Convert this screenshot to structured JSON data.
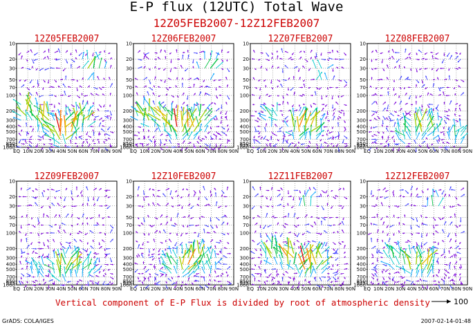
{
  "title": "E-P flux (12UTC) Total Wave",
  "subtitle": "12Z05FEB2007-12Z12FEB2007",
  "note": "Vertical component of E-P Flux is divided by root of atmospheric density",
  "reference_vector_label": "100",
  "footer_left": "GrADS: COLA/IGES",
  "footer_right": "2007-02-14-01:48",
  "colors": {
    "label_red": "#cc0000",
    "arrow_scale": [
      "#7a00d9",
      "#3a3aff",
      "#00a0ff",
      "#00c8c8",
      "#00c040",
      "#9bd000",
      "#e0c000",
      "#ff8000",
      "#e00000"
    ]
  },
  "chart_data": {
    "type": "vector field (Eliassen-Palm flux cross-sections)",
    "x_ticks": [
      "EQ",
      "10N",
      "20N",
      "30N",
      "40N",
      "50N",
      "60N",
      "70N",
      "80N",
      "90N"
    ],
    "y_ticks": [
      "10",
      "20",
      "30",
      "50",
      "70",
      "100",
      "200",
      "300",
      "400",
      "500",
      "700",
      "850",
      "925",
      "1000"
    ],
    "y_scale": "log-pressure (hPa), 10 at top, 1000 at bottom",
    "grid": "dotted",
    "panels": [
      {
        "label": "12Z05FEB2007",
        "activity": [
          {
            "lat": 10,
            "p": 200,
            "intensity": 0.75,
            "up": true
          },
          {
            "lat": 25,
            "p": 300,
            "intensity": 0.8,
            "up": true
          },
          {
            "lat": 40,
            "p": 500,
            "intensity": 1.0,
            "up": true
          },
          {
            "lat": 48,
            "p": 400,
            "intensity": 0.85,
            "up": true
          },
          {
            "lat": 58,
            "p": 300,
            "intensity": 0.7,
            "up": true
          },
          {
            "lat": 65,
            "p": 30,
            "intensity": 0.6,
            "up": true
          },
          {
            "lat": 70,
            "p": 30,
            "intensity": 0.55,
            "up": true
          }
        ]
      },
      {
        "label": "12Z06FEB2007",
        "activity": [
          {
            "lat": 12,
            "p": 250,
            "intensity": 0.7,
            "up": true
          },
          {
            "lat": 28,
            "p": 300,
            "intensity": 0.8,
            "up": true
          },
          {
            "lat": 40,
            "p": 400,
            "intensity": 0.95,
            "up": true
          },
          {
            "lat": 50,
            "p": 400,
            "intensity": 0.9,
            "up": true
          },
          {
            "lat": 60,
            "p": 300,
            "intensity": 0.6,
            "up": true
          },
          {
            "lat": 68,
            "p": 30,
            "intensity": 0.55,
            "up": true
          }
        ]
      },
      {
        "label": "12Z07FEB2007",
        "activity": [
          {
            "lat": 20,
            "p": 250,
            "intensity": 0.45,
            "up": true
          },
          {
            "lat": 45,
            "p": 400,
            "intensity": 0.9,
            "up": true
          },
          {
            "lat": 55,
            "p": 400,
            "intensity": 0.8,
            "up": true
          },
          {
            "lat": 62,
            "p": 40,
            "intensity": 0.5,
            "up": true
          }
        ]
      },
      {
        "label": "12Z08FEB2007",
        "activity": [
          {
            "lat": 35,
            "p": 500,
            "intensity": 0.55,
            "up": true
          },
          {
            "lat": 48,
            "p": 400,
            "intensity": 0.75,
            "up": true
          },
          {
            "lat": 57,
            "p": 400,
            "intensity": 0.6,
            "up": true
          },
          {
            "lat": 80,
            "p": 600,
            "intensity": 0.45,
            "up": true
          }
        ]
      },
      {
        "label": "12Z09FEB2007",
        "activity": [
          {
            "lat": 20,
            "p": 500,
            "intensity": 0.4,
            "up": true
          },
          {
            "lat": 40,
            "p": 500,
            "intensity": 0.75,
            "up": true
          },
          {
            "lat": 50,
            "p": 400,
            "intensity": 0.7,
            "up": true
          },
          {
            "lat": 62,
            "p": 500,
            "intensity": 0.5,
            "up": true
          }
        ]
      },
      {
        "label": "12Z10FEB2007",
        "activity": [
          {
            "lat": 35,
            "p": 400,
            "intensity": 0.55,
            "up": true
          },
          {
            "lat": 48,
            "p": 400,
            "intensity": 0.85,
            "up": true
          },
          {
            "lat": 58,
            "p": 300,
            "intensity": 0.7,
            "up": true
          },
          {
            "lat": 68,
            "p": 400,
            "intensity": 0.45,
            "up": true
          }
        ]
      },
      {
        "label": "12Z11FEB2007",
        "activity": [
          {
            "lat": 20,
            "p": 250,
            "intensity": 0.65,
            "up": true
          },
          {
            "lat": 35,
            "p": 300,
            "intensity": 0.85,
            "up": true
          },
          {
            "lat": 50,
            "p": 400,
            "intensity": 1.0,
            "up": true
          },
          {
            "lat": 60,
            "p": 350,
            "intensity": 0.75,
            "up": true
          },
          {
            "lat": 50,
            "p": 30,
            "intensity": 0.45,
            "up": true
          }
        ]
      },
      {
        "label": "12Z12FEB2007",
        "activity": [
          {
            "lat": 25,
            "p": 300,
            "intensity": 0.55,
            "up": true
          },
          {
            "lat": 40,
            "p": 400,
            "intensity": 0.7,
            "up": true
          },
          {
            "lat": 52,
            "p": 400,
            "intensity": 0.8,
            "up": true
          },
          {
            "lat": 60,
            "p": 30,
            "intensity": 0.45,
            "up": true
          }
        ]
      }
    ]
  }
}
